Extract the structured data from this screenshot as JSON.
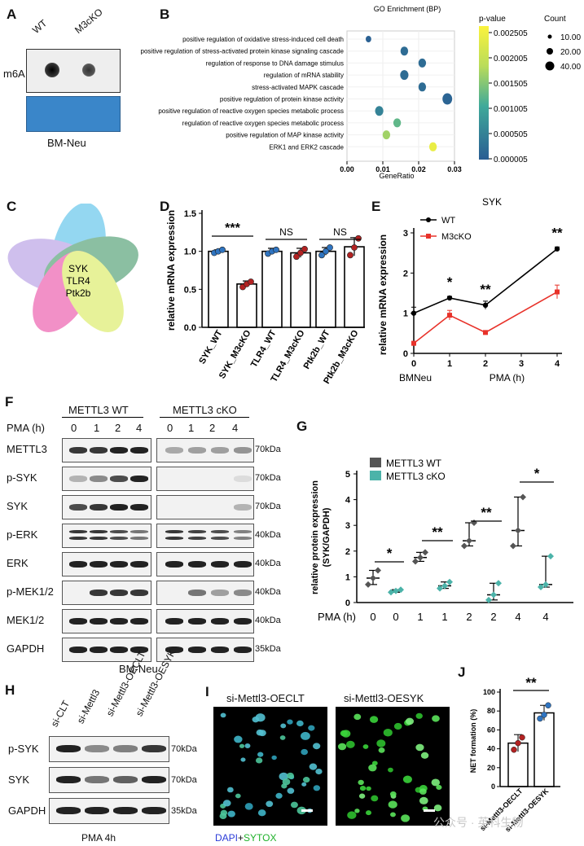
{
  "panelA": {
    "letter": "A",
    "lanes": [
      "WT",
      "M3cKO"
    ],
    "row_label": "m6A",
    "caption": "BM-Neu"
  },
  "panelB": {
    "letter": "B",
    "title": "GO Enrichment (BP)",
    "xlabel": "GeneRatio",
    "legend_pvalue_title": "p-value",
    "legend_count_title": "Count",
    "pvalue_ticks": [
      "0.002505",
      "0.002005",
      "0.001505",
      "0.001005",
      "0.000505",
      "0.000005"
    ],
    "count_ticks": [
      "10.00",
      "20.00",
      "40.00"
    ],
    "x_ticks": [
      "0.00",
      "0.01",
      "0.02",
      "0.03"
    ]
  },
  "panelC": {
    "letter": "C",
    "genes": [
      "SYK",
      "TLR4",
      "Ptk2b"
    ]
  },
  "panelD": {
    "letter": "D",
    "ylabel": "relative mRNA expression",
    "y_ticks": [
      "0.0",
      "0.5",
      "1.0",
      "1.5"
    ],
    "signif": [
      "***",
      "NS",
      "NS"
    ],
    "categories": [
      "SYK_WT",
      "SYK_M3cKO",
      "TLR4_WT",
      "TLR4_M3cKO",
      "Ptk2b_WT",
      "Ptk2b_M3cKO"
    ]
  },
  "panelE": {
    "letter": "E",
    "title": "SYK",
    "ylabel": "relative mRNA expression",
    "y_ticks": [
      "0",
      "1",
      "2",
      "3"
    ],
    "x_ticks": [
      "0",
      "1",
      "2",
      "3",
      "4"
    ],
    "xlabel_left": "BMNeu",
    "xlabel_right": "PMA (h)",
    "series_names": [
      "WT",
      "M3cKO"
    ],
    "signif": [
      "*",
      "**",
      "**"
    ]
  },
  "panelF": {
    "letter": "F",
    "group_wt": "METTL3 WT",
    "group_ko": "METTL3 cKO",
    "pma_label": "PMA (h)",
    "times": [
      "0",
      "1",
      "2",
      "4",
      "0",
      "1",
      "2",
      "4"
    ],
    "rows": [
      {
        "name": "METTL3",
        "kda": "70kDa"
      },
      {
        "name": "p-SYK",
        "kda": "70kDa"
      },
      {
        "name": "SYK",
        "kda": "70kDa"
      },
      {
        "name": "p-ERK",
        "kda": "40kDa"
      },
      {
        "name": "ERK",
        "kda": "40kDa"
      },
      {
        "name": "p-MEK1/2",
        "kda": "40kDa"
      },
      {
        "name": "MEK1/2",
        "kda": "40kDa"
      },
      {
        "name": "GAPDH",
        "kda": "35kDa"
      }
    ],
    "caption": "BM-Neu"
  },
  "panelG": {
    "letter": "G",
    "ylabel": "relative protein expression",
    "ylabel2": "(SYK/GAPDH)",
    "y_ticks": [
      "0",
      "1",
      "2",
      "3",
      "4",
      "5"
    ],
    "series_names": [
      "METTL3 WT",
      "METTL3 cKO"
    ],
    "pma_label": "PMA (h)",
    "x_ticks": [
      "0",
      "0",
      "1",
      "1",
      "2",
      "2",
      "4",
      "4"
    ],
    "signif": [
      "*",
      "**",
      "**",
      "*"
    ]
  },
  "panelH": {
    "letter": "H",
    "lanes": [
      "si-CLT",
      "si-Mettl3",
      "si-Mettl3-OECLT",
      "si-Mettl3-OESYK"
    ],
    "rows": [
      {
        "name": "p-SYK",
        "kda": "70kDa"
      },
      {
        "name": "SYK",
        "kda": "70kDa"
      },
      {
        "name": "GAPDH",
        "kda": "35kDa"
      }
    ],
    "caption": "PMA 4h"
  },
  "panelI": {
    "letter": "I",
    "titles": [
      "si-Mettl3-OECLT",
      "si-Mettl3-OESYK"
    ],
    "stain_dapi": "DAPI",
    "stain_plus": "+",
    "stain_sytox": "SYTOX"
  },
  "panelJ": {
    "letter": "J",
    "ylabel": "NET formation (%)",
    "y_ticks": [
      "0",
      "20",
      "40",
      "60",
      "80",
      "100"
    ],
    "categories": [
      "si-Mettl3-OECLT",
      "si-Mettl3-OESYK"
    ],
    "signif": "**"
  },
  "watermark": "公众号 · 英科生物",
  "colors": {
    "wt_dark": "#555555",
    "ko_teal": "#4bb3a9",
    "line_red": "#e8322a",
    "bar_red": "#b22222",
    "bar_blue": "#2f74c0"
  },
  "chart_data": [
    {
      "type": "scatter",
      "panel": "B",
      "title": "GO Enrichment (BP)",
      "xlabel": "GeneRatio",
      "xlim": [
        0,
        0.03
      ],
      "categories": [
        "positive regulation of oxidative stress-induced cell death",
        "positive regulation of stress-activated protein kinase signaling cascade",
        "regulation of response to DNA damage stimulus",
        "regulation of mRNA stability",
        "stress-activated MAPK cascade",
        "positive regulation of protein kinase activity",
        "positive regulation of reactive oxygen species metabolic process",
        "regulation of reactive oxygen species metabolic process",
        "positive regulation of MAP kinase activity",
        "ERK1 and ERK2 cascade"
      ],
      "x": [
        0.006,
        0.016,
        0.021,
        0.016,
        0.021,
        0.028,
        0.009,
        0.014,
        0.011,
        0.024
      ],
      "count": [
        10,
        25,
        25,
        30,
        25,
        40,
        30,
        25,
        25,
        25
      ],
      "pvalue": [
        5e-05,
        0.0002,
        0.0002,
        0.0002,
        0.0002,
        0.0001,
        0.0005,
        0.0012,
        0.0016,
        0.0023
      ]
    },
    {
      "type": "bar",
      "panel": "D",
      "ylabel": "relative mRNA expression",
      "ylim": [
        0,
        1.5
      ],
      "categories": [
        "SYK_WT",
        "SYK_M3cKO",
        "TLR4_WT",
        "TLR4_M3cKO",
        "Ptk2b_WT",
        "Ptk2b_M3cKO"
      ],
      "values": [
        1.0,
        0.57,
        1.0,
        0.98,
        1.0,
        1.06
      ],
      "errors": [
        0.02,
        0.04,
        0.04,
        0.06,
        0.05,
        0.12
      ],
      "points": [
        [
          0.98,
          1.0,
          1.02
        ],
        [
          0.53,
          0.57,
          0.6
        ],
        [
          0.97,
          1.0,
          1.02
        ],
        [
          0.93,
          0.98,
          1.03
        ],
        [
          0.95,
          1.0,
          1.05
        ],
        [
          0.95,
          1.05,
          1.17
        ]
      ]
    },
    {
      "type": "line",
      "panel": "E",
      "title": "SYK",
      "ylabel": "relative mRNA expression",
      "ylim": [
        0,
        3
      ],
      "xlim": [
        0,
        4
      ],
      "x": [
        0,
        1,
        2,
        4
      ],
      "series": [
        {
          "name": "WT",
          "values": [
            1.0,
            1.38,
            1.2,
            2.6
          ],
          "errors": [
            0.15,
            0.04,
            0.1,
            0.05
          ]
        },
        {
          "name": "M3cKO",
          "values": [
            0.25,
            0.95,
            0.52,
            1.53
          ],
          "errors": [
            0.05,
            0.12,
            0.04,
            0.17
          ]
        }
      ]
    },
    {
      "type": "scatter",
      "panel": "G",
      "ylabel": "relative protein expression (SYK/GAPDH)",
      "ylim": [
        0,
        5
      ],
      "categories": [
        "0",
        "0",
        "1",
        "1",
        "2",
        "2",
        "4",
        "4"
      ],
      "medians": [
        0.95,
        0.45,
        1.75,
        0.65,
        2.4,
        0.3,
        2.8,
        0.7
      ],
      "ranges": [
        [
          0.7,
          1.25
        ],
        [
          0.4,
          0.5
        ],
        [
          1.6,
          1.95
        ],
        [
          0.55,
          0.8
        ],
        [
          2.2,
          3.1
        ],
        [
          0.1,
          0.75
        ],
        [
          2.2,
          4.1
        ],
        [
          0.6,
          1.8
        ]
      ],
      "points": [
        [
          0.7,
          0.95,
          1.25
        ],
        [
          0.4,
          0.45,
          0.5
        ],
        [
          1.6,
          1.75,
          1.95
        ],
        [
          0.55,
          0.65,
          0.8
        ],
        [
          2.2,
          2.4,
          3.1
        ],
        [
          0.1,
          0.3,
          0.75
        ],
        [
          2.2,
          2.8,
          4.1
        ],
        [
          0.6,
          0.7,
          1.8
        ]
      ]
    },
    {
      "type": "bar",
      "panel": "J",
      "ylabel": "NET formation (%)",
      "ylim": [
        0,
        100
      ],
      "categories": [
        "si-Mettl3-OECLT",
        "si-Mettl3-OESYK"
      ],
      "values": [
        46,
        78
      ],
      "errors": [
        9,
        8
      ],
      "points": [
        [
          39,
          46,
          52
        ],
        [
          72,
          76,
          86
        ]
      ]
    }
  ]
}
